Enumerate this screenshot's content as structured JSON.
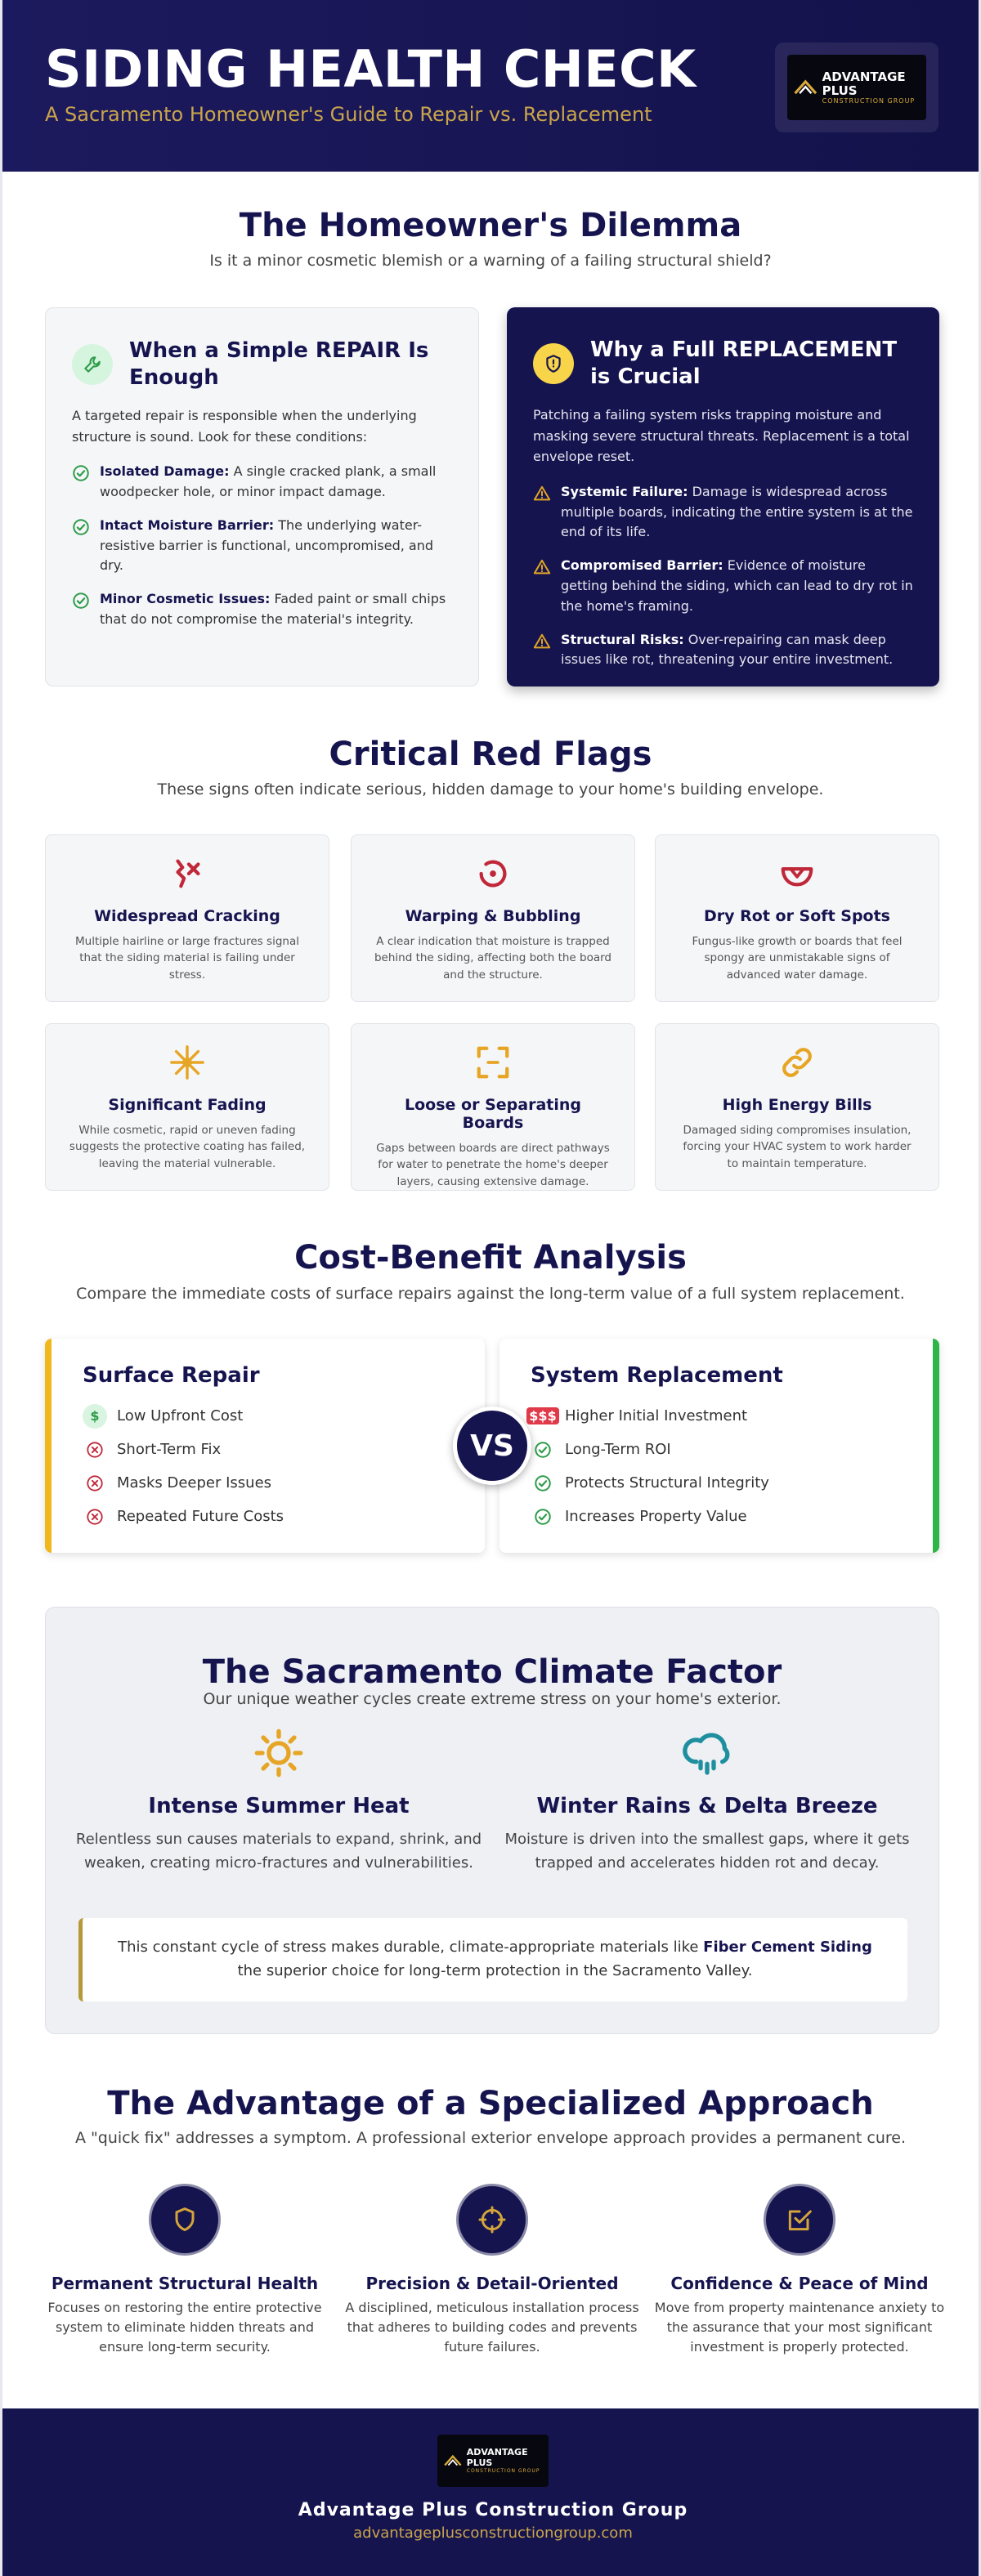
{
  "header": {
    "title": "SIDING HEALTH CHECK",
    "subtitle": "A Sacramento Homeowner's Guide to Repair vs. Replacement",
    "logo": {
      "line1": "ADVANTAGE PLUS",
      "line2": "CONSTRUCTION GROUP"
    }
  },
  "dilemma": {
    "title": "The Homeowner's Dilemma",
    "subtitle": "Is it a minor cosmetic blemish or a warning of a failing structural shield?",
    "repair": {
      "title": "When a Simple REPAIR Is Enough",
      "intro": "A targeted repair is responsible when the underlying structure is sound. Look for these conditions:",
      "items": [
        {
          "label": "Isolated Damage:",
          "text": "A single cracked plank, a small woodpecker hole, or minor impact damage."
        },
        {
          "label": "Intact Moisture Barrier:",
          "text": "The underlying water-resistive barrier is functional, uncompromised, and dry."
        },
        {
          "label": "Minor Cosmetic Issues:",
          "text": "Faded paint or small chips that do not compromise the material's integrity."
        }
      ]
    },
    "replacement": {
      "title": "Why a Full REPLACEMENT is Crucial",
      "intro": "Patching a failing system risks trapping moisture and masking severe structural threats. Replacement is a total envelope reset.",
      "items": [
        {
          "label": "Systemic Failure:",
          "text": "Damage is widespread across multiple boards, indicating the entire system is at the end of its life."
        },
        {
          "label": "Compromised Barrier:",
          "text": "Evidence of moisture getting behind the siding, which can lead to dry rot in the home's framing."
        },
        {
          "label": "Structural Risks:",
          "text": "Over-repairing can mask deep issues like rot, threatening your entire investment."
        }
      ]
    }
  },
  "red_flags": {
    "title": "Critical Red Flags",
    "subtitle": "These signs often indicate serious, hidden damage to your home's building envelope.",
    "items": [
      {
        "title": "Widespread Cracking",
        "text": "Multiple hairline or large fractures signal that the siding material is failing under stress."
      },
      {
        "title": "Warping & Bubbling",
        "text": "A clear indication that moisture is trapped behind the siding, affecting both the board and the structure."
      },
      {
        "title": "Dry Rot or Soft Spots",
        "text": "Fungus-like growth or boards that feel spongy are unmistakable signs of advanced water damage."
      },
      {
        "title": "Significant Fading",
        "text": "While cosmetic, rapid or uneven fading suggests the protective coating has failed, leaving the material vulnerable."
      },
      {
        "title": "Loose or Separating Boards",
        "text": "Gaps between boards are direct pathways for water to penetrate the home's deeper layers, causing extensive damage."
      },
      {
        "title": "High Energy Bills",
        "text": "Damaged siding compromises insulation, forcing your HVAC system to work harder to maintain temperature."
      }
    ]
  },
  "cost_benefit": {
    "title": "Cost-Benefit Analysis",
    "subtitle": "Compare the immediate costs of surface repairs against the long-term value of a full system replacement.",
    "vs": "VS",
    "repair": {
      "title": "Surface Repair",
      "items": [
        {
          "icon": "$",
          "text": "Low Upfront Cost"
        },
        {
          "text": "Short-Term Fix"
        },
        {
          "text": "Masks Deeper Issues"
        },
        {
          "text": "Repeated Future Costs"
        }
      ]
    },
    "replacement": {
      "title": "System Replacement",
      "items": [
        {
          "icon": "$$$",
          "text": "Higher Initial Investment"
        },
        {
          "text": "Long-Term ROI"
        },
        {
          "text": "Protects Structural Integrity"
        },
        {
          "text": "Increases Property Value"
        }
      ]
    }
  },
  "climate": {
    "title": "The Sacramento Climate Factor",
    "subtitle": "Our unique weather cycles create extreme stress on your home's exterior.",
    "factors": [
      {
        "title": "Intense Summer Heat",
        "text": "Relentless sun causes materials to expand, shrink, and weaken, creating micro-fractures and vulnerabilities."
      },
      {
        "title": "Winter Rains & Delta Breeze",
        "text": "Moisture is driven into the smallest gaps, where it gets trapped and accelerates hidden rot and decay."
      }
    ],
    "quote": {
      "before": "This constant cycle of stress makes durable, climate-appropriate materials like ",
      "bold": "Fiber Cement Siding",
      "after": " the superior choice for long-term protection in the Sacramento Valley."
    }
  },
  "advantage": {
    "title": "The Advantage of a Specialized Approach",
    "subtitle": "A \"quick fix\" addresses a symptom. A professional exterior envelope approach provides a permanent cure.",
    "items": [
      {
        "title": "Permanent Structural Health",
        "text": "Focuses on restoring the entire protective system to eliminate hidden threats and ensure long-term security."
      },
      {
        "title": "Precision & Detail-Oriented",
        "text": "A disciplined, meticulous installation process that adheres to building codes and prevents future failures."
      },
      {
        "title": "Confidence & Peace of Mind",
        "text": "Move from property maintenance anxiety to the assurance that your most significant investment is properly protected."
      }
    ]
  },
  "footer": {
    "logo": {
      "line1": "ADVANTAGE PLUS",
      "line2": "CONSTRUCTION GROUP"
    },
    "name": "Advantage Plus Construction Group",
    "url": "advantageplusconstructiongroup.com"
  }
}
